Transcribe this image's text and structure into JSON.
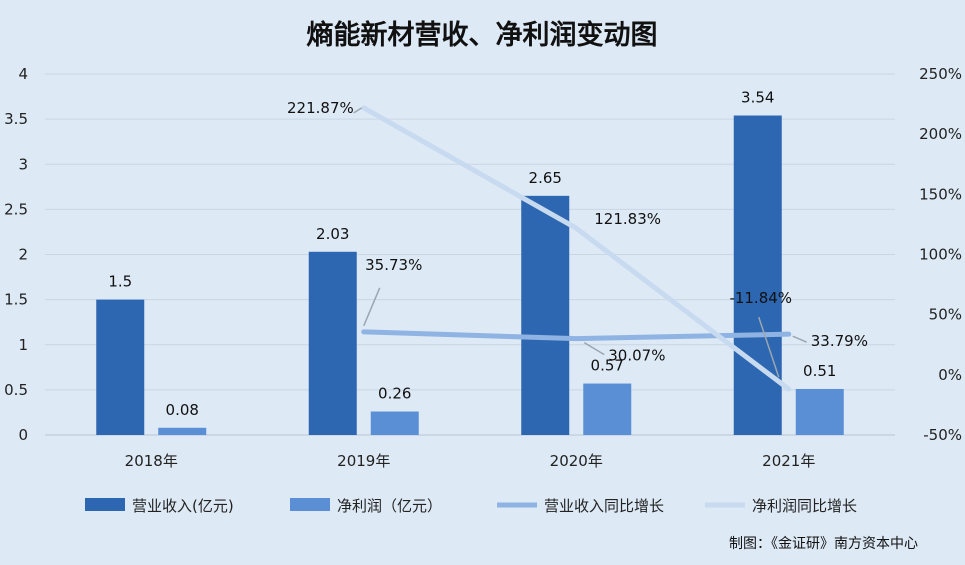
{
  "chart_data": {
    "type": "bar",
    "title": "熵能新材营收、净利润变动图",
    "categories": [
      "2018年",
      "2019年",
      "2020年",
      "2021年"
    ],
    "ylim": [
      0,
      4
    ],
    "y_ticks": [
      "0",
      "0.5",
      "1",
      "1.5",
      "2",
      "2.5",
      "3",
      "3.5",
      "4"
    ],
    "y2lim": [
      -50,
      250
    ],
    "y2_ticks": [
      "-50%",
      "0%",
      "50%",
      "100%",
      "150%",
      "200%",
      "250%"
    ],
    "series": [
      {
        "name": "营业收入(亿元)",
        "axis": "left",
        "kind": "bar",
        "color": "#2e67b1",
        "values": [
          1.5,
          2.03,
          2.65,
          3.54
        ],
        "labels": [
          "1.5",
          "2.03",
          "2.65",
          "3.54"
        ]
      },
      {
        "name": "净利润（亿元）",
        "axis": "left",
        "kind": "bar",
        "color": "#5a8fd6",
        "values": [
          0.08,
          0.26,
          0.57,
          0.51
        ],
        "labels": [
          "0.08",
          "0.26",
          "0.57",
          "0.51"
        ]
      },
      {
        "name": "营业收入同比增长",
        "axis": "right",
        "kind": "line",
        "color": "#8fb3e2",
        "values": [
          null,
          35.73,
          30.07,
          33.79
        ],
        "labels": [
          "",
          "35.73%",
          "30.07%",
          "33.79%"
        ]
      },
      {
        "name": "净利润同比增长",
        "axis": "right",
        "kind": "line",
        "color": "#c8daf0",
        "values": [
          null,
          221.87,
          121.83,
          -11.84
        ],
        "labels": [
          "",
          "221.87%",
          "121.83%",
          "-11.84%"
        ]
      }
    ],
    "grid": true,
    "legend_position": "bottom"
  },
  "credit": "制图：《金证研》南方资本中心"
}
